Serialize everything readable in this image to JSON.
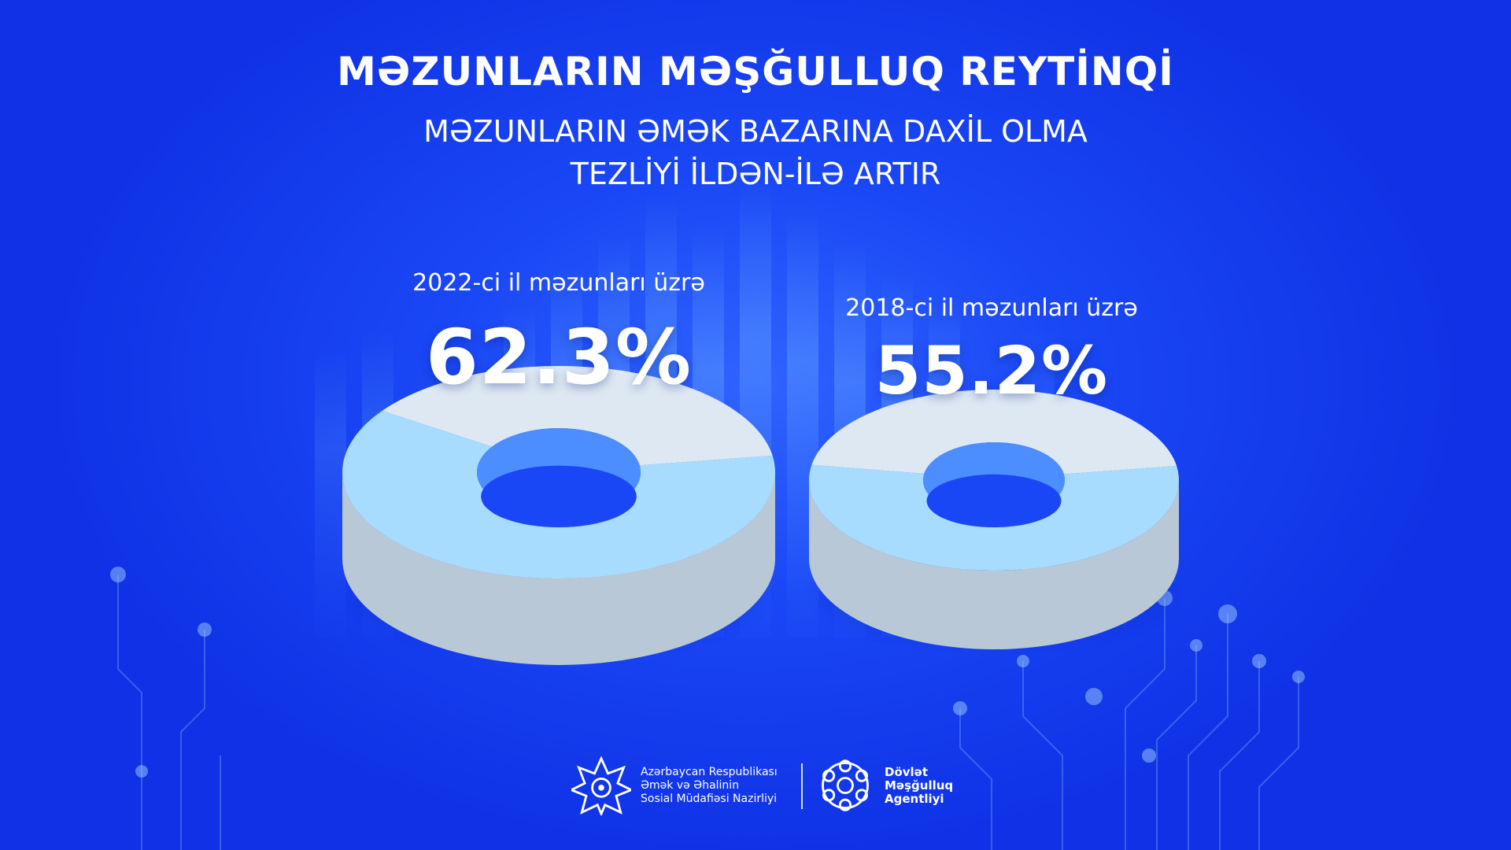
{
  "header": {
    "title": "MƏZUNLARIN MƏŞĞULLUQ REYTİNQİ",
    "subtitle_line1": "MƏZUNLARIN ƏMƏK BAZARINA DAXİL OLMA",
    "subtitle_line2": "TEZLİYİ İLDƏN-İLƏ ARTIR"
  },
  "chart_data": {
    "type": "pie",
    "title": "",
    "series": [
      {
        "label": "2022-ci il məzunları üzrə",
        "value_text": "62.3%",
        "value": 62.3
      },
      {
        "label": "2018-ci il məzunları üzrə",
        "value_text": "55.2%",
        "value": 55.2
      }
    ],
    "colors": {
      "highlight_top": "#a8dcff",
      "highlight_side": "#4c8dff",
      "rest_top": "#dde8f3",
      "rest_side": "#b9c8d6"
    }
  },
  "footer": {
    "ministry": {
      "line1": "Azərbaycan Respublikası",
      "line2": "Əmək və Əhalinin",
      "line3": "Sosial Müdafiəsi Nazirliyi",
      "icon": "ministry-star-logo"
    },
    "agency": {
      "line1": "Dövlət",
      "line2": "Məşğulluq",
      "line3": "Agentliyi",
      "icon": "agency-circle-logo"
    }
  }
}
